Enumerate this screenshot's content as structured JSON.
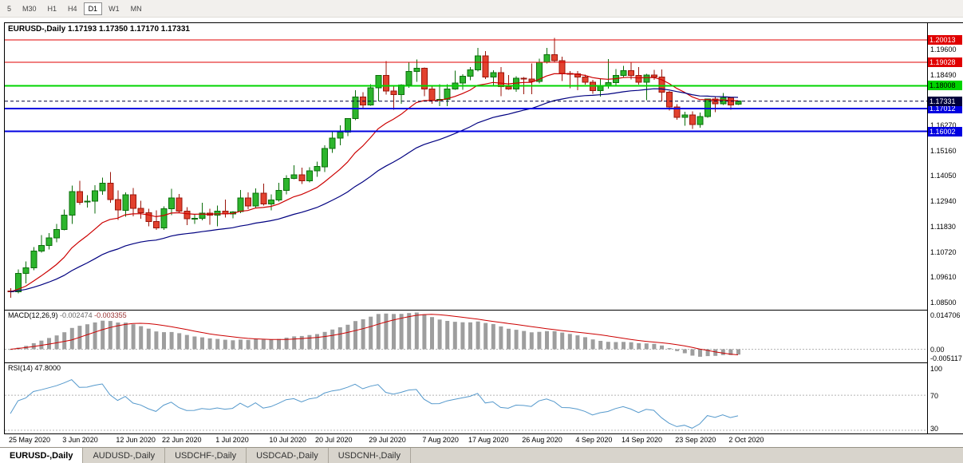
{
  "toolbar": {
    "items": [
      {
        "label": "5",
        "active": false
      },
      {
        "label": "M30",
        "active": false
      },
      {
        "label": "H1",
        "active": false
      },
      {
        "label": "H4",
        "active": false
      },
      {
        "label": "D1",
        "active": true
      },
      {
        "label": "W1",
        "active": false
      },
      {
        "label": "MN",
        "active": false
      }
    ]
  },
  "chart_header": {
    "symbol": "EURUSD-,Daily",
    "ohlc": "1.17193 1.17350 1.17170 1.17331"
  },
  "indicators": {
    "macd": {
      "label": "MACD(12,26,9)",
      "value_main": "-0.002474",
      "value_signal": "-0.003355",
      "axis_labels": [
        "0.014706",
        "0.00",
        "-0.005117"
      ]
    },
    "rsi": {
      "label": "RSI(14)",
      "value": "47.8000",
      "axis_labels": [
        "100",
        "70",
        "30"
      ]
    }
  },
  "tabs": [
    {
      "label": "EURUSD-,Daily",
      "active": true
    },
    {
      "label": "AUDUSD-,Daily",
      "active": false
    },
    {
      "label": "USDCHF-,Daily",
      "active": false
    },
    {
      "label": "USDCAD-,Daily",
      "active": false
    },
    {
      "label": "USDCNH-,Daily",
      "active": false
    }
  ],
  "chart_data": {
    "type": "candlestick",
    "title": "EURUSD-,Daily",
    "symbol": "EURUSD",
    "timeframe": "Daily",
    "current_ohlc": {
      "open": 1.17193,
      "high": 1.1735,
      "low": 1.1717,
      "close": 1.17331
    },
    "y_axis": {
      "min": 1.0815,
      "max": 1.2075,
      "ticks": [
        1.196,
        1.1849,
        1.1627,
        1.1516,
        1.1405,
        1.1294,
        1.1183,
        1.1072,
        1.0961,
        1.085
      ]
    },
    "x_axis": {
      "labels": [
        {
          "text": "25 May 2020",
          "i": 0
        },
        {
          "text": "3 Jun 2020",
          "i": 7
        },
        {
          "text": "12 Jun 2020",
          "i": 14
        },
        {
          "text": "22 Jun 2020",
          "i": 20
        },
        {
          "text": "1 Jul 2020",
          "i": 27
        },
        {
          "text": "10 Jul 2020",
          "i": 34
        },
        {
          "text": "20 Jul 2020",
          "i": 40
        },
        {
          "text": "29 Jul 2020",
          "i": 47
        },
        {
          "text": "7 Aug 2020",
          "i": 54
        },
        {
          "text": "17 Aug 2020",
          "i": 60
        },
        {
          "text": "26 Aug 2020",
          "i": 67
        },
        {
          "text": "4 Sep 2020",
          "i": 74
        },
        {
          "text": "14 Sep 2020",
          "i": 80
        },
        {
          "text": "23 Sep 2020",
          "i": 87
        },
        {
          "text": "2 Oct 2020",
          "i": 94
        }
      ]
    },
    "candles": [
      [
        1.0901,
        1.0913,
        1.0871,
        1.0897
      ],
      [
        1.0897,
        1.0996,
        1.0891,
        1.0978
      ],
      [
        1.0978,
        1.1031,
        1.0934,
        1.1002
      ],
      [
        1.1002,
        1.1093,
        1.0992,
        1.1076
      ],
      [
        1.1076,
        1.1145,
        1.1069,
        1.1101
      ],
      [
        1.1101,
        1.1154,
        1.1082,
        1.1134
      ],
      [
        1.1134,
        1.1195,
        1.1115,
        1.1171
      ],
      [
        1.1171,
        1.1257,
        1.1166,
        1.1234
      ],
      [
        1.1234,
        1.1362,
        1.1195,
        1.1337
      ],
      [
        1.1337,
        1.1383,
        1.1279,
        1.129
      ],
      [
        1.129,
        1.132,
        1.1267,
        1.1294
      ],
      [
        1.1294,
        1.1365,
        1.124,
        1.134
      ],
      [
        1.134,
        1.1398,
        1.1322,
        1.1374
      ],
      [
        1.1374,
        1.1422,
        1.1288,
        1.1301
      ],
      [
        1.1301,
        1.1341,
        1.1213,
        1.1255
      ],
      [
        1.1255,
        1.1333,
        1.1227,
        1.1323
      ],
      [
        1.1323,
        1.1353,
        1.1228,
        1.1263
      ],
      [
        1.1263,
        1.1296,
        1.1218,
        1.1244
      ],
      [
        1.1244,
        1.1262,
        1.1185,
        1.1206
      ],
      [
        1.1206,
        1.1255,
        1.1168,
        1.1177
      ],
      [
        1.1177,
        1.1271,
        1.1168,
        1.1261
      ],
      [
        1.1261,
        1.1349,
        1.1233,
        1.1308
      ],
      [
        1.1308,
        1.1326,
        1.1245,
        1.1251
      ],
      [
        1.1251,
        1.1268,
        1.119,
        1.1218
      ],
      [
        1.1218,
        1.1239,
        1.1194,
        1.1219
      ],
      [
        1.1219,
        1.1288,
        1.121,
        1.1242
      ],
      [
        1.1242,
        1.1262,
        1.1191,
        1.1234
      ],
      [
        1.1234,
        1.1276,
        1.1184,
        1.1251
      ],
      [
        1.1251,
        1.1302,
        1.1223,
        1.1239
      ],
      [
        1.1239,
        1.1251,
        1.1219,
        1.1248
      ],
      [
        1.1248,
        1.1344,
        1.1242,
        1.1308
      ],
      [
        1.1308,
        1.1333,
        1.1259,
        1.1274
      ],
      [
        1.1274,
        1.1351,
        1.1266,
        1.1329
      ],
      [
        1.1329,
        1.1371,
        1.1276,
        1.1282
      ],
      [
        1.1282,
        1.1325,
        1.1254,
        1.13
      ],
      [
        1.13,
        1.1375,
        1.1293,
        1.1341
      ],
      [
        1.1341,
        1.1409,
        1.1325,
        1.1394
      ],
      [
        1.1394,
        1.1452,
        1.139,
        1.141
      ],
      [
        1.141,
        1.1442,
        1.137,
        1.1384
      ],
      [
        1.1384,
        1.1444,
        1.1377,
        1.1427
      ],
      [
        1.1427,
        1.1467,
        1.1402,
        1.1446
      ],
      [
        1.1446,
        1.154,
        1.1422,
        1.1526
      ],
      [
        1.1526,
        1.1601,
        1.1507,
        1.1571
      ],
      [
        1.1571,
        1.1627,
        1.154,
        1.1598
      ],
      [
        1.1598,
        1.1658,
        1.158,
        1.1656
      ],
      [
        1.1656,
        1.1781,
        1.165,
        1.1752
      ],
      [
        1.1752,
        1.1773,
        1.17,
        1.1716
      ],
      [
        1.1716,
        1.1807,
        1.1712,
        1.1791
      ],
      [
        1.1791,
        1.1847,
        1.1732,
        1.1846
      ],
      [
        1.1846,
        1.1909,
        1.1762,
        1.1778
      ],
      [
        1.1778,
        1.1797,
        1.1695,
        1.1762
      ],
      [
        1.1762,
        1.1807,
        1.1722,
        1.1803
      ],
      [
        1.1803,
        1.1905,
        1.1791,
        1.1863
      ],
      [
        1.1863,
        1.1916,
        1.1817,
        1.1878
      ],
      [
        1.1878,
        1.1881,
        1.1754,
        1.1787
      ],
      [
        1.1787,
        1.1798,
        1.1722,
        1.1738
      ],
      [
        1.1738,
        1.1808,
        1.1711,
        1.174
      ],
      [
        1.174,
        1.1807,
        1.1711,
        1.1786
      ],
      [
        1.1786,
        1.1866,
        1.1782,
        1.1813
      ],
      [
        1.1813,
        1.1851,
        1.1783,
        1.1842
      ],
      [
        1.1842,
        1.1882,
        1.1824,
        1.1871
      ],
      [
        1.1871,
        1.1966,
        1.1863,
        1.1932
      ],
      [
        1.1932,
        1.1952,
        1.183,
        1.1839
      ],
      [
        1.1839,
        1.1869,
        1.1801,
        1.1858
      ],
      [
        1.1858,
        1.1882,
        1.1754,
        1.1796
      ],
      [
        1.1796,
        1.1848,
        1.1783,
        1.1787
      ],
      [
        1.1787,
        1.1842,
        1.1774,
        1.1834
      ],
      [
        1.1834,
        1.1838,
        1.1763,
        1.183
      ],
      [
        1.183,
        1.1898,
        1.1763,
        1.182
      ],
      [
        1.182,
        1.192,
        1.181,
        1.1903
      ],
      [
        1.1903,
        1.1966,
        1.1898,
        1.1936
      ],
      [
        1.1936,
        1.2011,
        1.1901,
        1.1911
      ],
      [
        1.1911,
        1.1928,
        1.1822,
        1.1854
      ],
      [
        1.1854,
        1.1865,
        1.1789,
        1.1852
      ],
      [
        1.1852,
        1.1865,
        1.1781,
        1.1839
      ],
      [
        1.1839,
        1.1849,
        1.1805,
        1.1816
      ],
      [
        1.1816,
        1.1827,
        1.1766,
        1.1779
      ],
      [
        1.1779,
        1.1834,
        1.1753,
        1.1802
      ],
      [
        1.1802,
        1.1917,
        1.1788,
        1.1814
      ],
      [
        1.1814,
        1.1874,
        1.18,
        1.1845
      ],
      [
        1.1845,
        1.1888,
        1.1839,
        1.1866
      ],
      [
        1.1866,
        1.1901,
        1.1829,
        1.1846
      ],
      [
        1.1846,
        1.1883,
        1.1805,
        1.1816
      ],
      [
        1.1816,
        1.1852,
        1.1737,
        1.1847
      ],
      [
        1.1847,
        1.1871,
        1.1826,
        1.1839
      ],
      [
        1.1839,
        1.1872,
        1.1732,
        1.1772
      ],
      [
        1.1772,
        1.1778,
        1.1692,
        1.1707
      ],
      [
        1.1707,
        1.1719,
        1.1651,
        1.1661
      ],
      [
        1.1661,
        1.1686,
        1.1626,
        1.1672
      ],
      [
        1.1672,
        1.1688,
        1.1612,
        1.1631
      ],
      [
        1.1631,
        1.1683,
        1.1617,
        1.1665
      ],
      [
        1.1665,
        1.1745,
        1.1661,
        1.1742
      ],
      [
        1.1742,
        1.1755,
        1.1684,
        1.1722
      ],
      [
        1.1722,
        1.1769,
        1.1717,
        1.1747
      ],
      [
        1.1747,
        1.1751,
        1.1695,
        1.1716
      ],
      [
        1.17193,
        1.1735,
        1.1717,
        1.17331
      ]
    ],
    "moving_averages": [
      {
        "period": 13,
        "method": "ema",
        "color": "#cc0000",
        "name": "ma-fast"
      },
      {
        "period": 34,
        "method": "ema",
        "color": "#000080",
        "name": "ma-slow"
      }
    ],
    "horizontal_lines": [
      {
        "label": "1.20013",
        "price": 1.20013,
        "color": "#e00000",
        "width": 1,
        "text_color": "#ffffff",
        "name": "resistance-line-upper"
      },
      {
        "label": "1.19028",
        "price": 1.19028,
        "color": "#e00000",
        "width": 1,
        "text_color": "#ffffff",
        "name": "resistance-line-lower"
      },
      {
        "label": "1.18008",
        "price": 1.18008,
        "color": "#00d400",
        "width": 2,
        "text_color": "#000000",
        "name": "pivot-line"
      },
      {
        "label": "1.17012",
        "price": 1.17012,
        "color": "#0000e0",
        "width": 2,
        "text_color": "#ffffff",
        "name": "support-line-upper"
      },
      {
        "label": "1.16002",
        "price": 1.16002,
        "color": "#0000e0",
        "width": 2,
        "text_color": "#ffffff",
        "name": "support-line-lower"
      }
    ],
    "current_price": {
      "label": "1.17331",
      "value": 1.17331,
      "badge_bg": "#00003c",
      "line_color": "#00003c"
    },
    "macd": {
      "params": [
        12,
        26,
        9
      ],
      "current_main": -0.002474,
      "current_signal": -0.003355,
      "axis_max": 0.014706,
      "axis_min": -0.005117,
      "histogram_color": "#9e9e9e",
      "signal_color": "#cc0000"
    },
    "rsi": {
      "period": 14,
      "current": 47.8,
      "levels": [
        70,
        30
      ],
      "color": "#5599cc"
    },
    "style": {
      "up_fill": "#2db52d",
      "up_stroke": "#0b6e0b",
      "down_fill": "#e2422f",
      "down_stroke": "#9a150b",
      "background": "#ffffff",
      "frame": "#000000",
      "level_line": "#b4b4b4"
    }
  }
}
